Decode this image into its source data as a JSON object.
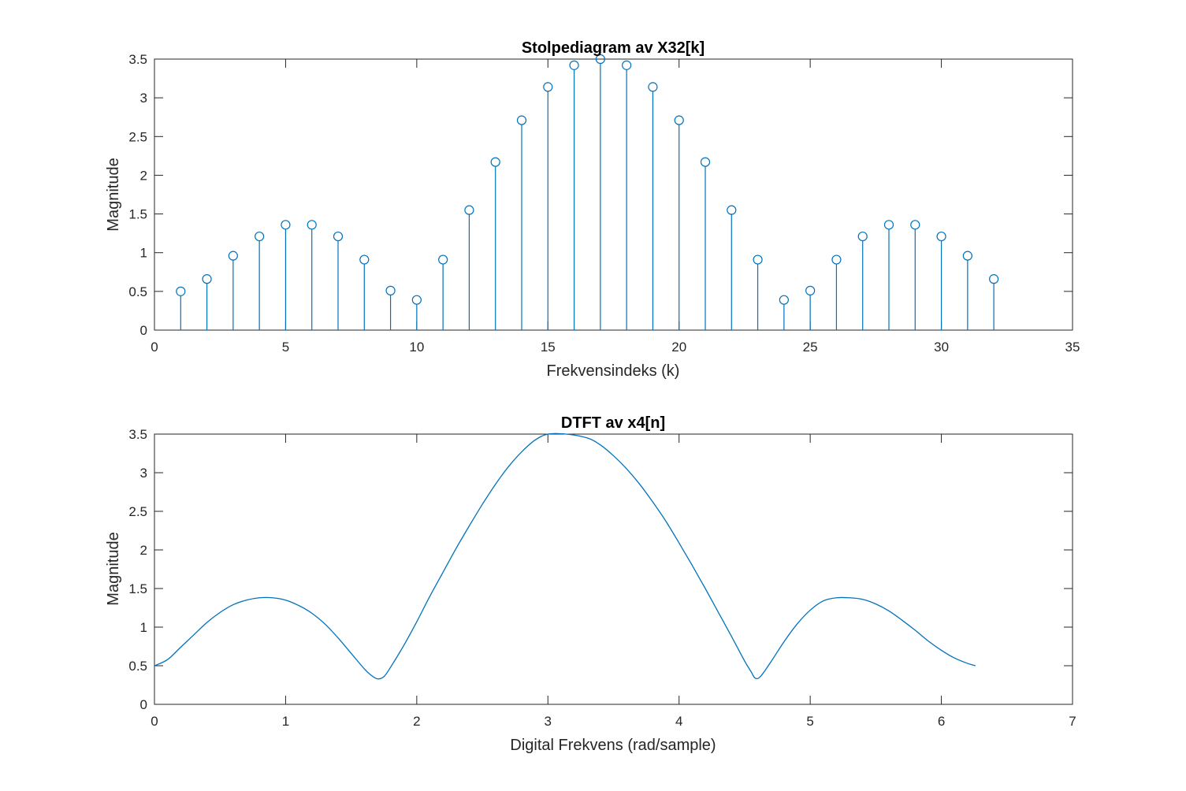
{
  "colors": {
    "series": "#0072BD",
    "axes": "#262626",
    "background": "#ffffff"
  },
  "chart_data": [
    {
      "type": "stem",
      "title": "Stolpediagram av X32[k]",
      "xlabel": "Frekvensindeks (k)",
      "ylabel": "Magnitude",
      "xlim": [
        0,
        35
      ],
      "ylim": [
        0,
        3.5
      ],
      "xticks": [
        0,
        5,
        10,
        15,
        20,
        25,
        30,
        35
      ],
      "yticks": [
        0,
        0.5,
        1,
        1.5,
        2,
        2.5,
        3,
        3.5
      ],
      "xtick_labels": [
        "0",
        "5",
        "10",
        "15",
        "20",
        "25",
        "30",
        "35"
      ],
      "ytick_labels": [
        "0",
        "0.5",
        "1",
        "1.5",
        "2",
        "2.5",
        "3",
        "3.5"
      ],
      "grid": false,
      "x": [
        1,
        2,
        3,
        4,
        5,
        6,
        7,
        8,
        9,
        10,
        11,
        12,
        13,
        14,
        15,
        16,
        17,
        18,
        19,
        20,
        21,
        22,
        23,
        24,
        25,
        26,
        27,
        28,
        29,
        30,
        31,
        32
      ],
      "values": [
        0.5,
        0.66,
        0.96,
        1.21,
        1.36,
        1.36,
        1.21,
        0.91,
        0.51,
        0.39,
        0.91,
        1.55,
        2.17,
        2.71,
        3.14,
        3.42,
        3.5,
        3.42,
        3.14,
        2.71,
        2.17,
        1.55,
        0.91,
        0.39,
        0.51,
        0.91,
        1.21,
        1.36,
        1.36,
        1.21,
        0.96,
        0.66
      ]
    },
    {
      "type": "line",
      "title": "DTFT av x4[n]",
      "xlabel": "Digital Frekvens (rad/sample)",
      "ylabel": "Magnitude",
      "xlim": [
        0,
        7
      ],
      "ylim": [
        0,
        3.5
      ],
      "xticks": [
        0,
        1,
        2,
        3,
        4,
        5,
        6,
        7
      ],
      "yticks": [
        0,
        0.5,
        1,
        1.5,
        2,
        2.5,
        3,
        3.5
      ],
      "xtick_labels": [
        "0",
        "1",
        "2",
        "3",
        "4",
        "5",
        "6",
        "7"
      ],
      "ytick_labels": [
        "0",
        "0.5",
        "1",
        "1.5",
        "2",
        "2.5",
        "3",
        "3.5"
      ],
      "grid": false,
      "x": [
        0.0,
        0.1,
        0.2,
        0.3,
        0.4,
        0.5,
        0.6,
        0.7,
        0.8,
        0.9,
        1.0,
        1.1,
        1.2,
        1.3,
        1.4,
        1.5,
        1.6,
        1.65,
        1.7,
        1.75,
        1.8,
        1.9,
        2.0,
        2.1,
        2.2,
        2.3,
        2.4,
        2.5,
        2.6,
        2.7,
        2.8,
        2.9,
        3.0,
        3.14,
        3.3,
        3.4,
        3.5,
        3.6,
        3.7,
        3.8,
        3.9,
        4.0,
        4.1,
        4.2,
        4.3,
        4.4,
        4.5,
        4.55,
        4.58,
        4.62,
        4.7,
        4.8,
        4.9,
        5.0,
        5.1,
        5.2,
        5.3,
        5.4,
        5.5,
        5.6,
        5.7,
        5.8,
        5.9,
        6.0,
        6.1,
        6.2,
        6.26
      ],
      "values": [
        0.5,
        0.58,
        0.74,
        0.9,
        1.06,
        1.19,
        1.29,
        1.35,
        1.38,
        1.38,
        1.35,
        1.28,
        1.18,
        1.04,
        0.86,
        0.66,
        0.46,
        0.38,
        0.33,
        0.36,
        0.48,
        0.76,
        1.07,
        1.4,
        1.71,
        2.02,
        2.31,
        2.59,
        2.85,
        3.08,
        3.27,
        3.42,
        3.5,
        3.5,
        3.45,
        3.36,
        3.22,
        3.05,
        2.85,
        2.62,
        2.37,
        2.09,
        1.8,
        1.5,
        1.19,
        0.88,
        0.56,
        0.42,
        0.34,
        0.36,
        0.55,
        0.81,
        1.04,
        1.22,
        1.34,
        1.38,
        1.38,
        1.36,
        1.3,
        1.21,
        1.09,
        0.96,
        0.82,
        0.7,
        0.6,
        0.53,
        0.5
      ]
    }
  ]
}
